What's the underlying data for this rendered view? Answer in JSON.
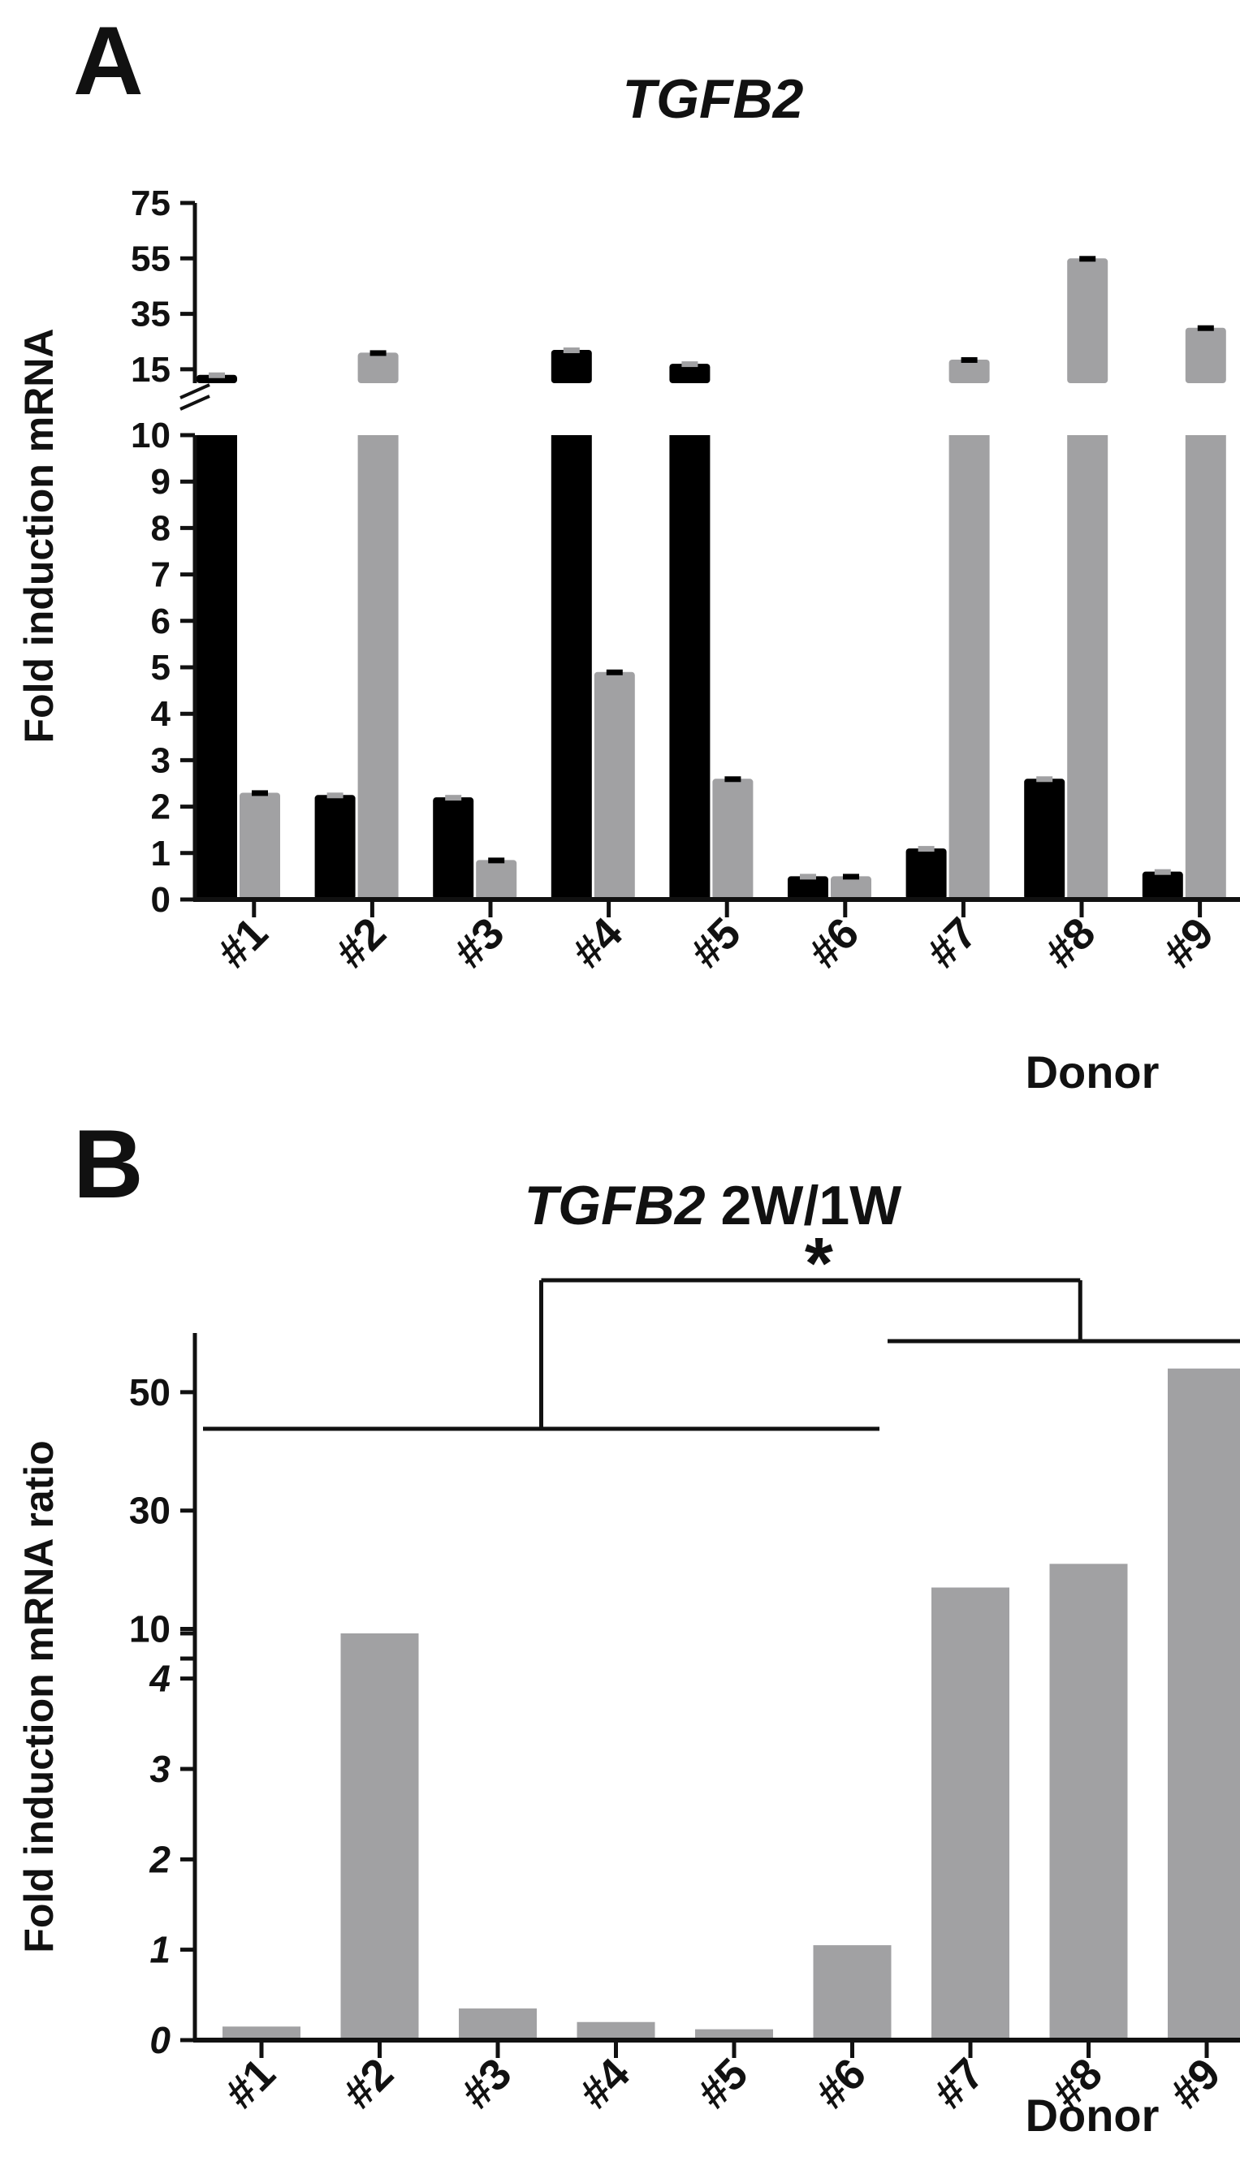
{
  "colors": {
    "black_series": "#000000",
    "grey_series": "#a1a1a3",
    "axis": "#111111"
  },
  "chart_data": [
    {
      "panel": "A",
      "type": "bar",
      "title": "TGFB2",
      "xlabel": "Donor",
      "ylabel": "Fold induction mRNA",
      "categories": [
        "#1",
        "#2",
        "#3",
        "#4",
        "#5",
        "#6",
        "#7",
        "#8",
        "#9"
      ],
      "series": [
        {
          "name": "black",
          "values": [
            13,
            2.25,
            2.2,
            22,
            17,
            0.5,
            1.1,
            2.6,
            0.6
          ]
        },
        {
          "name": "grey",
          "values": [
            2.3,
            21,
            0.85,
            4.9,
            2.6,
            0.5,
            18.5,
            55,
            30
          ]
        }
      ],
      "error_bars": true,
      "broken_axis": {
        "lower_ylim": [
          0,
          10
        ],
        "lower_ticks": [
          "0",
          "1",
          "2",
          "3",
          "4",
          "5",
          "6",
          "7",
          "8",
          "9",
          "10"
        ],
        "upper_ylim": [
          10,
          75
        ],
        "upper_ticks": [
          "15",
          "35",
          "55",
          "75"
        ]
      }
    },
    {
      "panel": "B",
      "type": "bar",
      "title_italic": "TGFB2",
      "title_rest": " 2W/1W",
      "xlabel": "Donor",
      "ylabel": "Fold induction mRNA ratio",
      "categories": [
        "#1",
        "#2",
        "#3",
        "#4",
        "#5",
        "#6",
        "#7",
        "#8",
        "#9"
      ],
      "series": [
        {
          "name": "ratio",
          "values": [
            0.15,
            9,
            0.35,
            0.2,
            0.12,
            1.05,
            17,
            21,
            54
          ]
        }
      ],
      "broken_axis": {
        "lower_ylim": [
          0,
          4.5
        ],
        "lower_ticks": [
          "0",
          "1",
          "2",
          "3",
          "4"
        ],
        "upper_ylim": [
          5,
          60
        ],
        "upper_ticks": [
          "10",
          "30",
          "50"
        ]
      },
      "significance": {
        "label": "*",
        "group_1": [
          "#1",
          "#6"
        ],
        "group_2": [
          "#7",
          "#9"
        ]
      }
    }
  ]
}
